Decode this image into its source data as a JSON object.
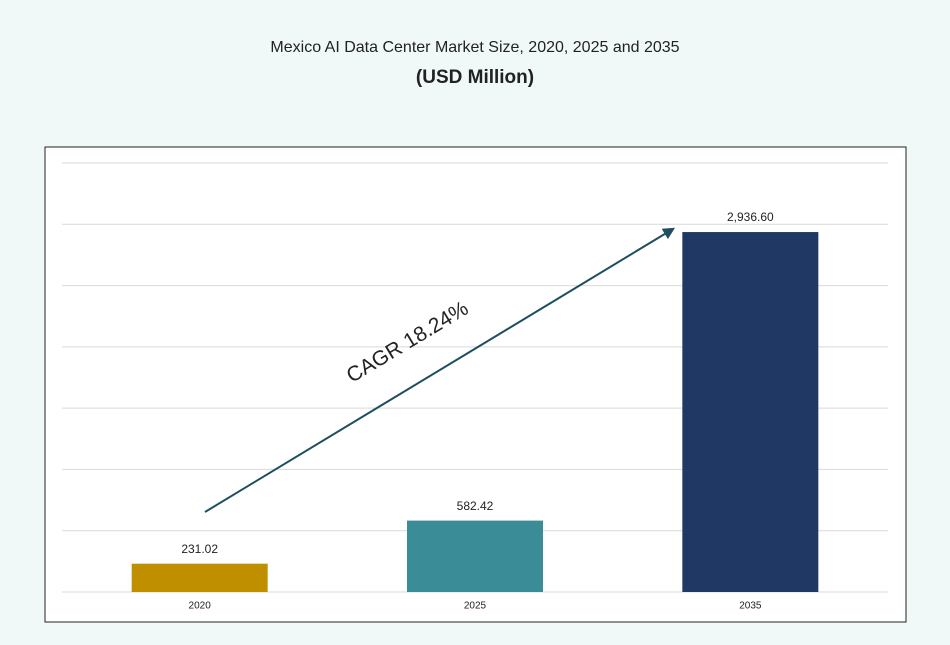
{
  "chart_data": {
    "type": "bar",
    "title": "Mexico AI Data Center Market Size, 2020, 2025 and 2035",
    "subtitle": "(USD Million)",
    "categories": [
      "2020",
      "2025",
      "2035"
    ],
    "values": [
      231.02,
      582.42,
      2936.6
    ],
    "value_labels": [
      "231.02",
      "582.42",
      "2,936.60"
    ],
    "colors": [
      "#bf8f00",
      "#3a8c96",
      "#1f3864"
    ],
    "ylim": [
      0,
      3500
    ],
    "yticks": [
      0,
      500,
      1000,
      1500,
      2000,
      2500,
      3000,
      3500
    ],
    "grid": true,
    "annotation": "CAGR 18.24%"
  }
}
